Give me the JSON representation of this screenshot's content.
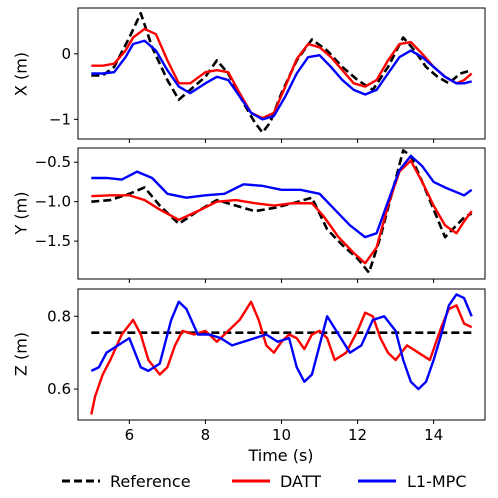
{
  "chart_data": [
    {
      "type": "line",
      "panel": "X",
      "title": "",
      "xlabel": "",
      "ylabel": "X (m)",
      "xlim": [
        4.65,
        15.35
      ],
      "ylim": [
        -1.3,
        0.7
      ],
      "xticks": [
        6,
        8,
        10,
        12,
        14
      ],
      "yticks": [
        -1,
        0
      ],
      "ytick_labels": [
        "−1",
        "0"
      ],
      "grid": false,
      "series": [
        {
          "name": "Reference",
          "x": [
            5.0,
            5.3,
            5.6,
            6.0,
            6.3,
            6.6,
            7.0,
            7.3,
            7.6,
            8.0,
            8.3,
            8.6,
            9.0,
            9.3,
            9.5,
            9.7,
            10.0,
            10.4,
            10.8,
            11.2,
            11.6,
            12.0,
            12.4,
            12.8,
            13.2,
            13.5,
            13.8,
            14.1,
            14.4,
            14.7,
            15.0
          ],
          "y": [
            -0.33,
            -0.33,
            -0.2,
            0.25,
            0.62,
            0.1,
            -0.4,
            -0.7,
            -0.55,
            -0.35,
            -0.1,
            -0.3,
            -0.75,
            -1.05,
            -1.2,
            -1.05,
            -0.6,
            -0.1,
            0.22,
            0.05,
            -0.2,
            -0.4,
            -0.55,
            -0.2,
            0.25,
            0.05,
            -0.2,
            -0.35,
            -0.45,
            -0.3,
            -0.25
          ]
        },
        {
          "name": "DATT",
          "x": [
            5.0,
            5.3,
            5.6,
            5.9,
            6.1,
            6.4,
            6.7,
            7.0,
            7.3,
            7.6,
            8.0,
            8.3,
            8.6,
            8.9,
            9.2,
            9.5,
            9.8,
            10.1,
            10.4,
            10.7,
            11.0,
            11.3,
            11.6,
            11.9,
            12.2,
            12.5,
            12.8,
            13.1,
            13.4,
            13.7,
            14.0,
            14.3,
            14.6,
            14.8,
            15.0
          ],
          "y": [
            -0.18,
            -0.18,
            -0.15,
            0.05,
            0.25,
            0.38,
            0.3,
            -0.1,
            -0.45,
            -0.45,
            -0.28,
            -0.25,
            -0.28,
            -0.6,
            -0.9,
            -0.98,
            -0.9,
            -0.5,
            -0.08,
            0.15,
            0.1,
            -0.05,
            -0.25,
            -0.45,
            -0.5,
            -0.4,
            -0.1,
            0.15,
            0.18,
            0.0,
            -0.2,
            -0.35,
            -0.45,
            -0.4,
            -0.3
          ]
        },
        {
          "name": "L1-MPC",
          "x": [
            5.0,
            5.3,
            5.6,
            5.9,
            6.1,
            6.4,
            6.7,
            7.0,
            7.3,
            7.6,
            8.0,
            8.3,
            8.6,
            8.9,
            9.2,
            9.5,
            9.8,
            10.1,
            10.4,
            10.7,
            11.0,
            11.3,
            11.6,
            11.9,
            12.2,
            12.5,
            12.8,
            13.1,
            13.4,
            13.7,
            14.0,
            14.3,
            14.6,
            14.8,
            15.0
          ],
          "y": [
            -0.3,
            -0.3,
            -0.28,
            -0.05,
            0.15,
            0.2,
            0.05,
            -0.25,
            -0.5,
            -0.6,
            -0.45,
            -0.35,
            -0.4,
            -0.65,
            -0.9,
            -1.0,
            -0.95,
            -0.65,
            -0.3,
            -0.05,
            -0.02,
            -0.2,
            -0.4,
            -0.55,
            -0.62,
            -0.55,
            -0.3,
            -0.05,
            0.05,
            -0.05,
            -0.2,
            -0.35,
            -0.45,
            -0.45,
            -0.42
          ]
        }
      ]
    },
    {
      "type": "line",
      "panel": "Y",
      "title": "",
      "xlabel": "",
      "ylabel": "Y (m)",
      "xlim": [
        4.65,
        15.35
      ],
      "ylim": [
        -1.98,
        -0.32
      ],
      "xticks": [
        6,
        8,
        10,
        12,
        14
      ],
      "yticks": [
        -1.5,
        -1.0,
        -0.5
      ],
      "ytick_labels": [
        "−1.5",
        "−1.0",
        "−0.5"
      ],
      "grid": false,
      "series": [
        {
          "name": "Reference",
          "x": [
            5.0,
            5.5,
            6.0,
            6.4,
            6.8,
            7.3,
            7.8,
            8.3,
            8.8,
            9.3,
            9.8,
            10.3,
            10.8,
            11.2,
            11.6,
            12.0,
            12.3,
            12.6,
            12.9,
            13.2,
            13.4,
            13.7,
            14.0,
            14.3,
            14.6,
            14.8,
            15.0
          ],
          "y": [
            -1.0,
            -0.98,
            -0.9,
            -0.82,
            -1.05,
            -1.28,
            -1.12,
            -0.98,
            -1.05,
            -1.12,
            -1.08,
            -1.02,
            -0.95,
            -1.35,
            -1.55,
            -1.72,
            -1.9,
            -1.45,
            -0.9,
            -0.35,
            -0.42,
            -0.75,
            -1.1,
            -1.45,
            -1.3,
            -1.2,
            -1.15
          ]
        },
        {
          "name": "DATT",
          "x": [
            5.0,
            5.5,
            6.0,
            6.4,
            6.8,
            7.3,
            7.8,
            8.3,
            8.8,
            9.3,
            9.8,
            10.3,
            10.8,
            11.1,
            11.5,
            11.9,
            12.2,
            12.5,
            12.8,
            13.1,
            13.4,
            13.7,
            14.0,
            14.3,
            14.6,
            14.8,
            15.0
          ],
          "y": [
            -0.93,
            -0.92,
            -0.92,
            -0.98,
            -1.1,
            -1.23,
            -1.12,
            -1.0,
            -0.98,
            -1.02,
            -1.05,
            -1.02,
            -1.02,
            -1.18,
            -1.45,
            -1.65,
            -1.78,
            -1.58,
            -1.05,
            -0.62,
            -0.48,
            -0.75,
            -1.05,
            -1.3,
            -1.4,
            -1.25,
            -1.12
          ]
        },
        {
          "name": "L1-MPC",
          "x": [
            5.0,
            5.4,
            5.8,
            6.2,
            6.6,
            7.0,
            7.5,
            8.0,
            8.5,
            9.0,
            9.5,
            10.0,
            10.5,
            11.0,
            11.4,
            11.8,
            12.2,
            12.5,
            12.8,
            13.1,
            13.4,
            13.7,
            14.0,
            14.3,
            14.6,
            14.8,
            15.0
          ],
          "y": [
            -0.7,
            -0.7,
            -0.72,
            -0.62,
            -0.7,
            -0.9,
            -0.95,
            -0.92,
            -0.9,
            -0.78,
            -0.8,
            -0.85,
            -0.85,
            -0.9,
            -1.1,
            -1.3,
            -1.45,
            -1.4,
            -1.0,
            -0.6,
            -0.42,
            -0.55,
            -0.75,
            -0.82,
            -0.88,
            -0.92,
            -0.85
          ]
        }
      ]
    },
    {
      "type": "line",
      "panel": "Z",
      "title": "",
      "xlabel": "Time (s)",
      "ylabel": "Z (m)",
      "xlim": [
        4.65,
        15.35
      ],
      "ylim": [
        0.515,
        0.875
      ],
      "xticks": [
        6,
        8,
        10,
        12,
        14
      ],
      "xtick_labels": [
        "6",
        "8",
        "10",
        "12",
        "14"
      ],
      "yticks": [
        0.6,
        0.8
      ],
      "ytick_labels": [
        "0.6",
        "0.8"
      ],
      "grid": false,
      "series": [
        {
          "name": "Reference",
          "x": [
            5.0,
            15.0
          ],
          "y": [
            0.755,
            0.755
          ]
        },
        {
          "name": "DATT",
          "x": [
            5.0,
            5.1,
            5.3,
            5.5,
            5.8,
            6.1,
            6.3,
            6.5,
            6.8,
            7.0,
            7.2,
            7.4,
            7.7,
            8.0,
            8.3,
            8.6,
            8.9,
            9.2,
            9.4,
            9.6,
            9.8,
            10.0,
            10.2,
            10.4,
            10.6,
            10.8,
            11.0,
            11.2,
            11.4,
            11.7,
            12.0,
            12.2,
            12.4,
            12.6,
            12.8,
            13.0,
            13.3,
            13.6,
            13.9,
            14.2,
            14.4,
            14.6,
            14.8,
            15.0
          ],
          "y": [
            0.53,
            0.58,
            0.64,
            0.68,
            0.75,
            0.79,
            0.75,
            0.68,
            0.64,
            0.66,
            0.72,
            0.76,
            0.75,
            0.76,
            0.73,
            0.76,
            0.79,
            0.84,
            0.79,
            0.72,
            0.7,
            0.73,
            0.75,
            0.74,
            0.71,
            0.75,
            0.76,
            0.74,
            0.68,
            0.7,
            0.76,
            0.81,
            0.8,
            0.74,
            0.7,
            0.68,
            0.72,
            0.7,
            0.68,
            0.77,
            0.82,
            0.83,
            0.78,
            0.77
          ]
        },
        {
          "name": "L1-MPC",
          "x": [
            5.0,
            5.2,
            5.4,
            5.7,
            6.0,
            6.3,
            6.5,
            6.8,
            7.1,
            7.3,
            7.5,
            7.8,
            8.1,
            8.4,
            8.7,
            9.0,
            9.3,
            9.6,
            9.9,
            10.2,
            10.4,
            10.6,
            10.8,
            11.0,
            11.2,
            11.5,
            11.8,
            12.1,
            12.4,
            12.7,
            13.0,
            13.2,
            13.4,
            13.6,
            13.8,
            14.0,
            14.2,
            14.4,
            14.6,
            14.8,
            15.0
          ],
          "y": [
            0.65,
            0.66,
            0.7,
            0.72,
            0.74,
            0.66,
            0.65,
            0.67,
            0.79,
            0.84,
            0.82,
            0.75,
            0.75,
            0.74,
            0.72,
            0.73,
            0.74,
            0.75,
            0.73,
            0.74,
            0.66,
            0.62,
            0.64,
            0.72,
            0.8,
            0.75,
            0.7,
            0.72,
            0.79,
            0.8,
            0.76,
            0.68,
            0.62,
            0.6,
            0.62,
            0.68,
            0.75,
            0.83,
            0.86,
            0.85,
            0.8
          ]
        }
      ]
    }
  ],
  "legend": {
    "placement": "bottom",
    "entries": [
      {
        "label": "Reference",
        "color": "#000000",
        "dash": "dashed"
      },
      {
        "label": "DATT",
        "color": "#ff0000",
        "dash": "solid"
      },
      {
        "label": "L1-MPC",
        "color": "#0000ff",
        "dash": "solid"
      }
    ]
  },
  "colors": {
    "Reference": "#000000",
    "DATT": "#ff0000",
    "L1-MPC": "#0000ff"
  }
}
